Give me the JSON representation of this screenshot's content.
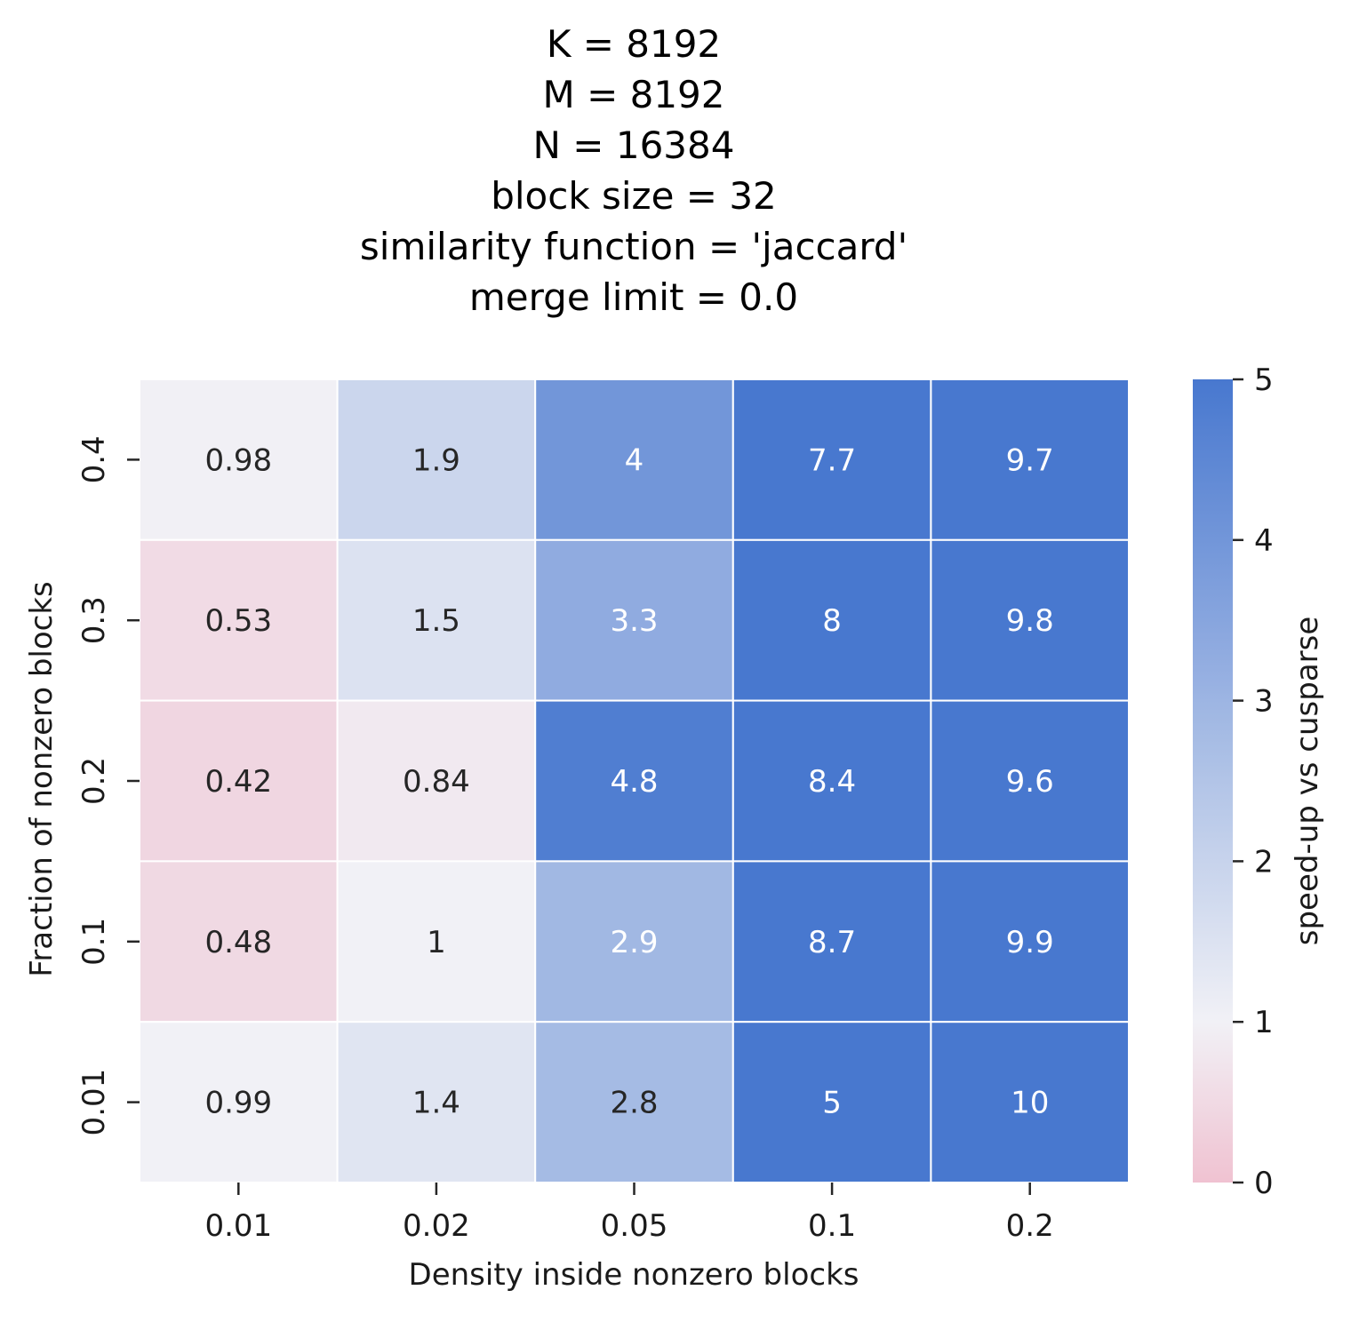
{
  "chart_data": {
    "type": "heatmap",
    "title_lines": [
      "K = 8192",
      "M = 8192",
      "N = 16384",
      "block size = 32",
      "similarity function = 'jaccard'",
      "merge limit = 0.0"
    ],
    "xlabel": "Density inside nonzero blocks",
    "ylabel": "Fraction of nonzero blocks",
    "x_categories": [
      "0.01",
      "0.02",
      "0.05",
      "0.1",
      "0.2"
    ],
    "y_categories": [
      "0.4",
      "0.3",
      "0.2",
      "0.1",
      "0.01"
    ],
    "values": [
      [
        0.98,
        1.9,
        4,
        7.7,
        9.7
      ],
      [
        0.53,
        1.5,
        3.3,
        8,
        9.8
      ],
      [
        0.42,
        0.84,
        4.8,
        8.4,
        9.6
      ],
      [
        0.48,
        1,
        2.9,
        8.7,
        9.9
      ],
      [
        0.99,
        1.4,
        2.8,
        5,
        10
      ]
    ],
    "cell_labels": [
      [
        "0.98",
        "1.9",
        "4",
        "7.7",
        "9.7"
      ],
      [
        "0.53",
        "1.5",
        "3.3",
        "8",
        "9.8"
      ],
      [
        "0.42",
        "0.84",
        "4.8",
        "8.4",
        "9.6"
      ],
      [
        "0.48",
        "1",
        "2.9",
        "8.7",
        "9.9"
      ],
      [
        "0.99",
        "1.4",
        "2.8",
        "5",
        "10"
      ]
    ],
    "colorbar": {
      "label": "speed-up vs cusparse",
      "range": [
        0,
        5
      ],
      "ticks": [
        "0",
        "1",
        "2",
        "3",
        "4",
        "5"
      ],
      "colors": {
        "low": "#f0c2d1",
        "mid": "#f1f1f6",
        "high": "#4878cf"
      },
      "center": 1
    },
    "text_colors": {
      "dark": "#262626",
      "light": "#ffffff"
    },
    "grid": false
  }
}
